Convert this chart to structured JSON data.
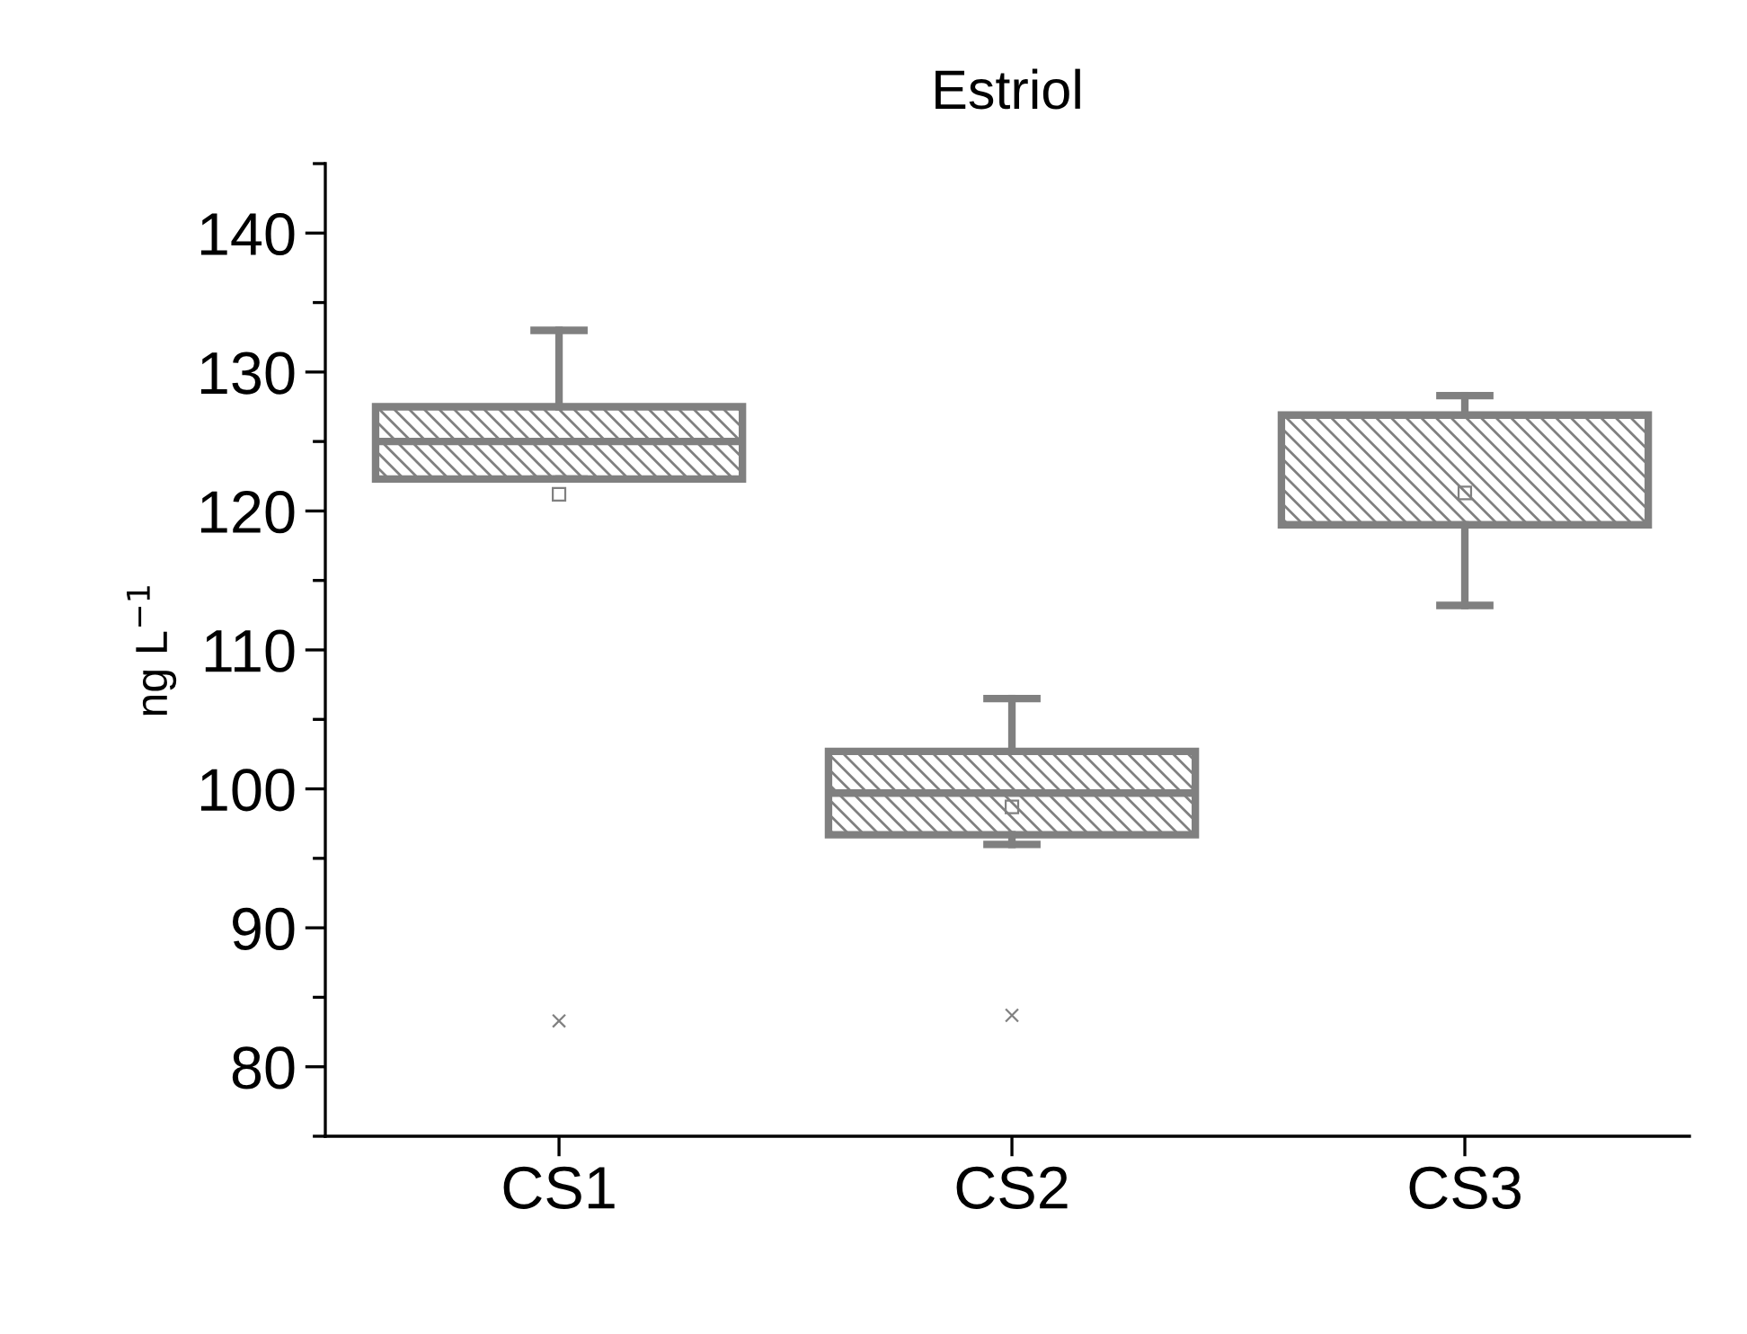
{
  "chart_data": {
    "type": "box",
    "title": "Estriol",
    "ylabel": "ng L$^{−1}$",
    "categories": [
      "CS1",
      "CS2",
      "CS3"
    ],
    "color": "#808080",
    "boxes": [
      {
        "low": 122.3,
        "q1": 122.3,
        "median": 125.0,
        "q3": 127.5,
        "high": 133.0,
        "mean": 121.2,
        "outliers": [
          83.3
        ]
      },
      {
        "low": 96.0,
        "q1": 96.7,
        "median": 99.7,
        "q3": 102.7,
        "high": 106.5,
        "mean": 98.7,
        "outliers": [
          83.7
        ]
      },
      {
        "low": 113.2,
        "q1": 119.0,
        "median": 119.0,
        "q3": 126.9,
        "high": 128.3,
        "mean": 121.3
      }
    ],
    "ylim": [
      75,
      145
    ],
    "yticks": [
      80,
      90,
      100,
      110,
      120,
      130,
      140
    ],
    "grid": false
  }
}
